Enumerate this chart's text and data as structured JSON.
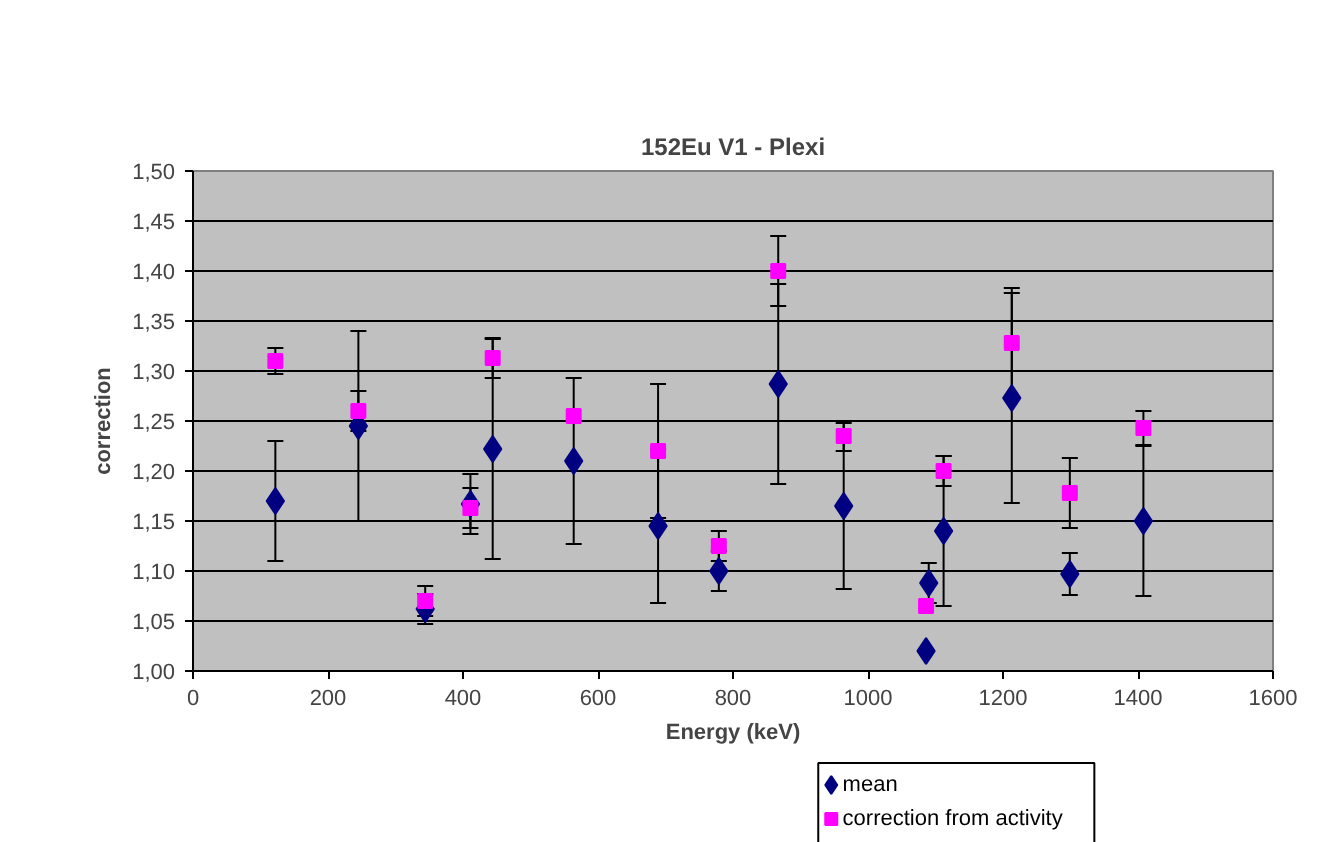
{
  "chart_data": {
    "type": "scatter",
    "title": "152Eu V1 - Plexi",
    "xlabel": "Energy (keV)",
    "ylabel": "correction",
    "x": [
      122,
      245,
      344,
      411,
      444,
      564,
      689,
      779,
      867,
      964,
      1086,
      1090,
      1112,
      1213,
      1299,
      1408
    ],
    "series": [
      {
        "name": "mean",
        "color": "#000080",
        "marker": "diamond",
        "values": [
          1.17,
          1.245,
          1.062,
          1.167,
          1.222,
          1.21,
          1.145,
          1.1,
          1.287,
          1.165,
          1.02,
          1.088,
          1.14,
          1.273,
          1.097,
          1.15
        ],
        "errors": [
          0.06,
          0.095,
          0.015,
          0.03,
          0.11,
          0.083,
          0.077,
          0.02,
          0.1,
          0.083,
          null,
          0.02,
          0.075,
          0.105,
          0.021,
          0.075
        ]
      },
      {
        "name": "correction from activity",
        "color": "#ff00ff",
        "marker": "square",
        "values": [
          1.31,
          1.26,
          1.07,
          1.163,
          1.313,
          1.255,
          1.22,
          1.125,
          1.4,
          1.235,
          1.065,
          null,
          1.2,
          1.328,
          1.178,
          1.243
        ],
        "errors": [
          0.013,
          0.02,
          0.015,
          0.02,
          0.02,
          null,
          0.067,
          0.015,
          0.035,
          0.015,
          null,
          null,
          0.015,
          0.055,
          0.035,
          0.017
        ]
      }
    ],
    "xlim": [
      0,
      1600
    ],
    "xticks": [
      0,
      200,
      400,
      600,
      800,
      1000,
      1200,
      1400,
      1600
    ],
    "ylim": [
      1.0,
      1.5
    ],
    "yticks": [
      {
        "value": 1.0,
        "label": "1,00"
      },
      {
        "value": 1.05,
        "label": "1,05"
      },
      {
        "value": 1.1,
        "label": "1,10"
      },
      {
        "value": 1.15,
        "label": "1,15"
      },
      {
        "value": 1.2,
        "label": "1,20"
      },
      {
        "value": 1.25,
        "label": "1,25"
      },
      {
        "value": 1.3,
        "label": "1,30"
      },
      {
        "value": 1.35,
        "label": "1,35"
      },
      {
        "value": 1.4,
        "label": "1,40"
      },
      {
        "value": 1.45,
        "label": "1,45"
      },
      {
        "value": 1.5,
        "label": "1,50"
      }
    ],
    "grid": "y",
    "legend": "bottom right"
  }
}
